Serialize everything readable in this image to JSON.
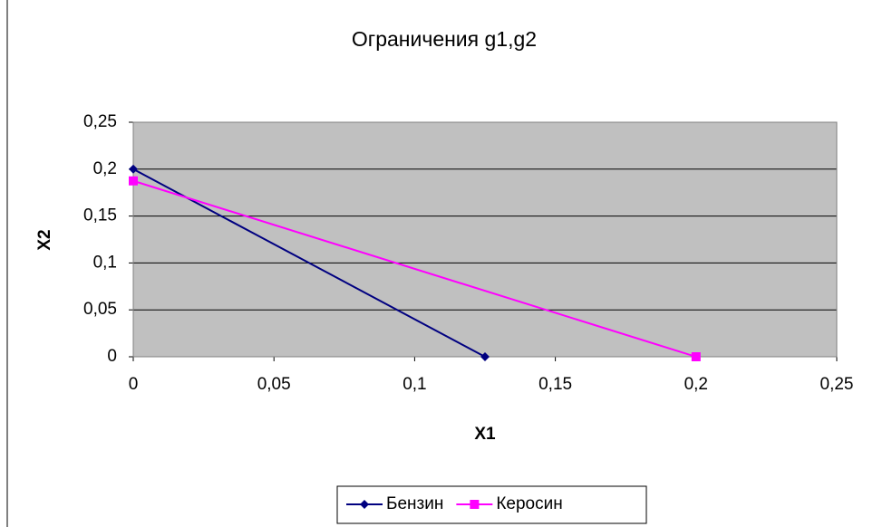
{
  "chart_data": {
    "type": "scatter",
    "title": "Ограничения g1,g2",
    "xlabel": "X1",
    "ylabel": "X2",
    "series": [
      {
        "name": "Бензин",
        "color": "#000080",
        "marker": "diamond",
        "x": [
          0,
          0.125
        ],
        "values": [
          0.2,
          0
        ]
      },
      {
        "name": "Керосин",
        "color": "#ff00ff",
        "marker": "square",
        "x": [
          0,
          0.2
        ],
        "values": [
          0.1875,
          0
        ]
      }
    ],
    "xlim": [
      0,
      0.25
    ],
    "xticks": [
      0,
      {
        "value": 0.05,
        "label": "0,05"
      },
      {
        "value": 0.1,
        "label": "0,1"
      },
      {
        "value": 0.15,
        "label": "0,15"
      },
      {
        "value": 0.2,
        "label": "0,2"
      },
      {
        "value": 0.25,
        "label": "0,25"
      }
    ],
    "ylim": [
      0,
      0.25
    ],
    "yticks": [
      0,
      {
        "value": 0.05,
        "label": "0,05"
      },
      {
        "value": 0.1,
        "label": "0,1"
      },
      {
        "value": 0.15,
        "label": "0,15"
      },
      {
        "value": 0.2,
        "label": "0,2"
      },
      {
        "value": 0.25,
        "label": "0,25"
      }
    ],
    "grid": true,
    "legend": "bottom"
  }
}
